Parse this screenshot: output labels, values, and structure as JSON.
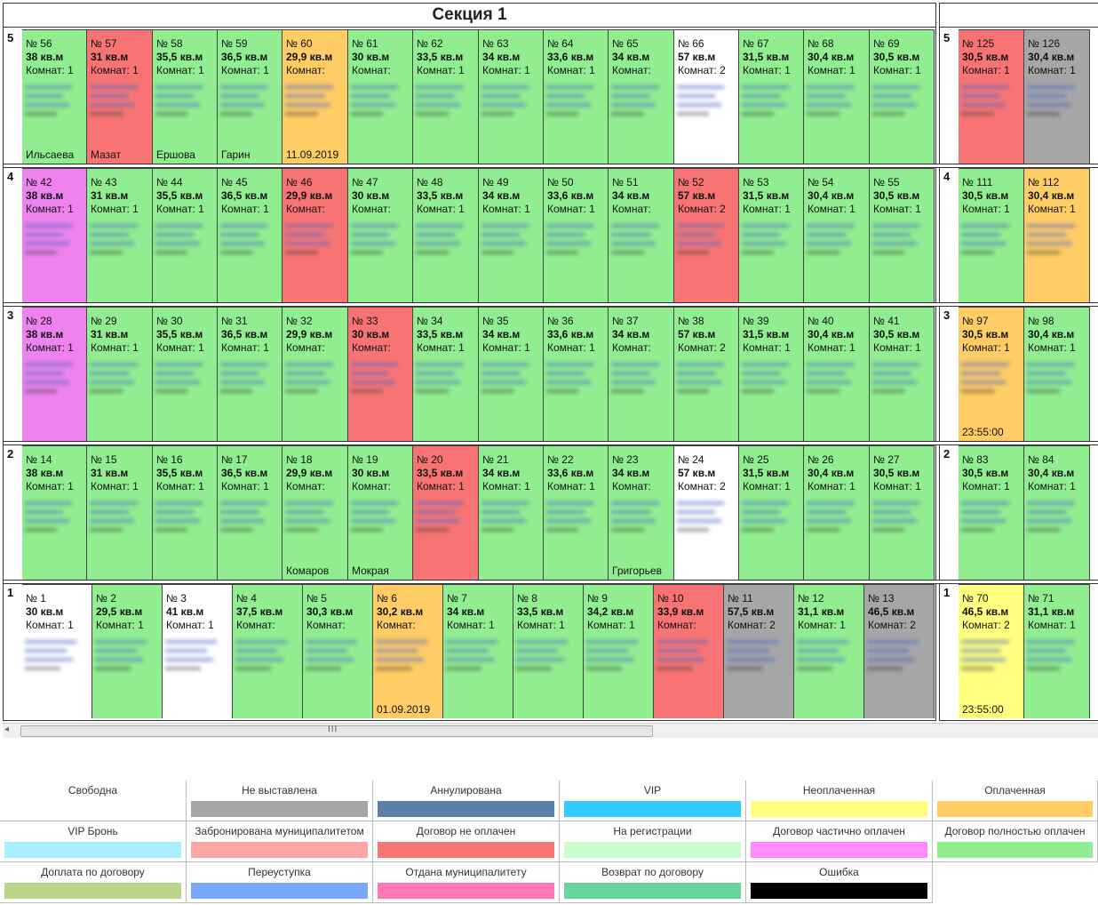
{
  "section1": {
    "title": "Секция 1"
  },
  "floors": [
    {
      "label": "5",
      "cells": [
        {
          "n": "№ 56",
          "a": "38 кв.м",
          "r": "Комнат: 1",
          "c": "#90ee90",
          "x": "Ильсаева"
        },
        {
          "n": "№ 57",
          "a": "31 кв.м",
          "r": "Комнат: 1",
          "c": "#f87474",
          "x": "Мазат"
        },
        {
          "n": "№ 58",
          "a": "35,5 кв.м",
          "r": "Комнат: 1",
          "c": "#90ee90",
          "x": "Ершова"
        },
        {
          "n": "№ 59",
          "a": "36,5 кв.м",
          "r": "Комнат: 1",
          "c": "#90ee90",
          "x": "Гарин"
        },
        {
          "n": "№ 60",
          "a": "29,9 кв.м",
          "r": "Комнат:",
          "c": "#ffcc66",
          "x": "11.09.2019"
        },
        {
          "n": "№ 61",
          "a": "30 кв.м",
          "r": "Комнат:",
          "c": "#90ee90",
          "x": ""
        },
        {
          "n": "№ 62",
          "a": "33,5 кв.м",
          "r": "Комнат: 1",
          "c": "#90ee90",
          "x": ""
        },
        {
          "n": "№ 63",
          "a": "34 кв.м",
          "r": "Комнат: 1",
          "c": "#90ee90",
          "x": ""
        },
        {
          "n": "№ 64",
          "a": "33,6 кв.м",
          "r": "Комнат: 1",
          "c": "#90ee90",
          "x": ""
        },
        {
          "n": "№ 65",
          "a": "34 кв.м",
          "r": "Комнат:",
          "c": "#90ee90",
          "x": ""
        },
        {
          "n": "№ 66",
          "a": "57 кв.м",
          "r": "Комнат: 2",
          "c": "#ffffff",
          "x": ""
        },
        {
          "n": "№ 67",
          "a": "31,5 кв.м",
          "r": "Комнат: 1",
          "c": "#90ee90",
          "x": ""
        },
        {
          "n": "№ 68",
          "a": "30,4 кв.м",
          "r": "Комнат: 1",
          "c": "#90ee90",
          "x": ""
        },
        {
          "n": "№ 69",
          "a": "30,5 кв.м",
          "r": "Комнат: 1",
          "c": "#90ee90",
          "x": ""
        }
      ],
      "right": [
        {
          "n": "№ 125",
          "a": "30,5 кв.м",
          "r": "Комнат: 1",
          "c": "#f87474",
          "x": ""
        },
        {
          "n": "№ 126",
          "a": "30,4 кв.м",
          "r": "Комнат: 1",
          "c": "#a6a6a6",
          "x": ""
        }
      ]
    },
    {
      "label": "4",
      "cells": [
        {
          "n": "№ 42",
          "a": "38 кв.м",
          "r": "Комнат: 1",
          "c": "#ee82ee",
          "x": ""
        },
        {
          "n": "№ 43",
          "a": "31 кв.м",
          "r": "Комнат: 1",
          "c": "#90ee90",
          "x": ""
        },
        {
          "n": "№ 44",
          "a": "35,5 кв.м",
          "r": "Комнат: 1",
          "c": "#90ee90",
          "x": ""
        },
        {
          "n": "№ 45",
          "a": "36,5 кв.м",
          "r": "Комнат: 1",
          "c": "#90ee90",
          "x": ""
        },
        {
          "n": "№ 46",
          "a": "29,9 кв.м",
          "r": "Комнат:",
          "c": "#f87474",
          "x": ""
        },
        {
          "n": "№ 47",
          "a": "30 кв.м",
          "r": "Комнат:",
          "c": "#90ee90",
          "x": ""
        },
        {
          "n": "№ 48",
          "a": "33,5 кв.м",
          "r": "Комнат: 1",
          "c": "#90ee90",
          "x": ""
        },
        {
          "n": "№ 49",
          "a": "34 кв.м",
          "r": "Комнат: 1",
          "c": "#90ee90",
          "x": ""
        },
        {
          "n": "№ 50",
          "a": "33,6 кв.м",
          "r": "Комнат: 1",
          "c": "#90ee90",
          "x": ""
        },
        {
          "n": "№ 51",
          "a": "34 кв.м",
          "r": "Комнат:",
          "c": "#90ee90",
          "x": ""
        },
        {
          "n": "№ 52",
          "a": "57 кв.м",
          "r": "Комнат: 2",
          "c": "#f87474",
          "x": ""
        },
        {
          "n": "№ 53",
          "a": "31,5 кв.м",
          "r": "Комнат: 1",
          "c": "#90ee90",
          "x": ""
        },
        {
          "n": "№ 54",
          "a": "30,4 кв.м",
          "r": "Комнат: 1",
          "c": "#90ee90",
          "x": ""
        },
        {
          "n": "№ 55",
          "a": "30,5 кв.м",
          "r": "Комнат: 1",
          "c": "#90ee90",
          "x": ""
        }
      ],
      "right": [
        {
          "n": "№ 111",
          "a": "30,5 кв.м",
          "r": "Комнат: 1",
          "c": "#90ee90",
          "x": ""
        },
        {
          "n": "№ 112",
          "a": "30,4 кв.м",
          "r": "Комнат: 1",
          "c": "#ffcc66",
          "x": ""
        }
      ]
    },
    {
      "label": "3",
      "cells": [
        {
          "n": "№ 28",
          "a": "38 кв.м",
          "r": "Комнат: 1",
          "c": "#ee82ee",
          "x": ""
        },
        {
          "n": "№ 29",
          "a": "31 кв.м",
          "r": "Комнат: 1",
          "c": "#90ee90",
          "x": ""
        },
        {
          "n": "№ 30",
          "a": "35,5 кв.м",
          "r": "Комнат: 1",
          "c": "#90ee90",
          "x": ""
        },
        {
          "n": "№ 31",
          "a": "36,5 кв.м",
          "r": "Комнат: 1",
          "c": "#90ee90",
          "x": ""
        },
        {
          "n": "№ 32",
          "a": "29,9 кв.м",
          "r": "Комнат:",
          "c": "#90ee90",
          "x": ""
        },
        {
          "n": "№ 33",
          "a": "30 кв.м",
          "r": "Комнат:",
          "c": "#f87474",
          "x": ""
        },
        {
          "n": "№ 34",
          "a": "33,5 кв.м",
          "r": "Комнат: 1",
          "c": "#90ee90",
          "x": ""
        },
        {
          "n": "№ 35",
          "a": "34 кв.м",
          "r": "Комнат: 1",
          "c": "#90ee90",
          "x": ""
        },
        {
          "n": "№ 36",
          "a": "33,6 кв.м",
          "r": "Комнат: 1",
          "c": "#90ee90",
          "x": ""
        },
        {
          "n": "№ 37",
          "a": "34 кв.м",
          "r": "Комнат:",
          "c": "#90ee90",
          "x": ""
        },
        {
          "n": "№ 38",
          "a": "57 кв.м",
          "r": "Комнат: 2",
          "c": "#90ee90",
          "x": ""
        },
        {
          "n": "№ 39",
          "a": "31,5 кв.м",
          "r": "Комнат: 1",
          "c": "#90ee90",
          "x": ""
        },
        {
          "n": "№ 40",
          "a": "30,4 кв.м",
          "r": "Комнат: 1",
          "c": "#90ee90",
          "x": ""
        },
        {
          "n": "№ 41",
          "a": "30,5 кв.м",
          "r": "Комнат: 1",
          "c": "#90ee90",
          "x": ""
        }
      ],
      "right": [
        {
          "n": "№ 97",
          "a": "30,5 кв.м",
          "r": "Комнат: 1",
          "c": "#ffcc66",
          "x": "23:55:00"
        },
        {
          "n": "№ 98",
          "a": "30,4 кв.м",
          "r": "Комнат: 1",
          "c": "#90ee90",
          "x": ""
        }
      ]
    },
    {
      "label": "2",
      "cells": [
        {
          "n": "№ 14",
          "a": "38 кв.м",
          "r": "Комнат: 1",
          "c": "#90ee90",
          "x": ""
        },
        {
          "n": "№ 15",
          "a": "31 кв.м",
          "r": "Комнат: 1",
          "c": "#90ee90",
          "x": ""
        },
        {
          "n": "№ 16",
          "a": "35,5 кв.м",
          "r": "Комнат: 1",
          "c": "#90ee90",
          "x": ""
        },
        {
          "n": "№ 17",
          "a": "36,5 кв.м",
          "r": "Комнат: 1",
          "c": "#90ee90",
          "x": ""
        },
        {
          "n": "№ 18",
          "a": "29,9 кв.м",
          "r": "Комнат:",
          "c": "#90ee90",
          "x": "Комаров"
        },
        {
          "n": "№ 19",
          "a": "30 кв.м",
          "r": "Комнат:",
          "c": "#90ee90",
          "x": "Мокрая"
        },
        {
          "n": "№ 20",
          "a": "33,5 кв.м",
          "r": "Комнат: 1",
          "c": "#f87474",
          "x": ""
        },
        {
          "n": "№ 21",
          "a": "34 кв.м",
          "r": "Комнат: 1",
          "c": "#90ee90",
          "x": ""
        },
        {
          "n": "№ 22",
          "a": "33,6 кв.м",
          "r": "Комнат: 1",
          "c": "#90ee90",
          "x": ""
        },
        {
          "n": "№ 23",
          "a": "34 кв.м",
          "r": "Комнат:",
          "c": "#90ee90",
          "x": "Григорьев"
        },
        {
          "n": "№ 24",
          "a": "57 кв.м",
          "r": "Комнат: 2",
          "c": "#ffffff",
          "x": ""
        },
        {
          "n": "№ 25",
          "a": "31,5 кв.м",
          "r": "Комнат: 1",
          "c": "#90ee90",
          "x": ""
        },
        {
          "n": "№ 26",
          "a": "30,4 кв.м",
          "r": "Комнат: 1",
          "c": "#90ee90",
          "x": ""
        },
        {
          "n": "№ 27",
          "a": "30,5 кв.м",
          "r": "Комнат: 1",
          "c": "#90ee90",
          "x": ""
        }
      ],
      "right": [
        {
          "n": "№ 83",
          "a": "30,5 кв.м",
          "r": "Комнат: 1",
          "c": "#90ee90",
          "x": ""
        },
        {
          "n": "№ 84",
          "a": "30,4 кв.м",
          "r": "Комнат: 1",
          "c": "#90ee90",
          "x": ""
        }
      ]
    },
    {
      "label": "1",
      "cells": [
        {
          "n": "№ 1",
          "a": "30 кв.м",
          "r": "Комнат: 1",
          "c": "#ffffff",
          "x": ""
        },
        {
          "n": "№ 2",
          "a": "29,5 кв.м",
          "r": "Комнат: 1",
          "c": "#90ee90",
          "x": ""
        },
        {
          "n": "№ 3",
          "a": "41 кв.м",
          "r": "Комнат: 1",
          "c": "#ffffff",
          "x": ""
        },
        {
          "n": "№ 4",
          "a": "37,5 кв.м",
          "r": "Комнат:",
          "c": "#90ee90",
          "x": ""
        },
        {
          "n": "№ 5",
          "a": "30,3 кв.м",
          "r": "Комнат:",
          "c": "#90ee90",
          "x": ""
        },
        {
          "n": "№ 6",
          "a": "30,2 кв.м",
          "r": "Комнат:",
          "c": "#ffcc66",
          "x": "01.09.2019"
        },
        {
          "n": "№ 7",
          "a": "34 кв.м",
          "r": "Комнат: 1",
          "c": "#90ee90",
          "x": ""
        },
        {
          "n": "№ 8",
          "a": "33,5 кв.м",
          "r": "Комнат: 1",
          "c": "#90ee90",
          "x": ""
        },
        {
          "n": "№ 9",
          "a": "34,2 кв.м",
          "r": "Комнат: 1",
          "c": "#90ee90",
          "x": ""
        },
        {
          "n": "№ 10",
          "a": "33,9 кв.м",
          "r": "Комнат:",
          "c": "#f87474",
          "x": ""
        },
        {
          "n": "№ 11",
          "a": "57,5 кв.м",
          "r": "Комнат: 2",
          "c": "#a6a6a6",
          "x": ""
        },
        {
          "n": "№ 12",
          "a": "31,1 кв.м",
          "r": "Комнат: 1",
          "c": "#90ee90",
          "x": ""
        },
        {
          "n": "№ 13",
          "a": "46,5 кв.м",
          "r": "Комнат: 2",
          "c": "#a6a6a6",
          "x": ""
        }
      ],
      "right": [
        {
          "n": "№ 70",
          "a": "46,5 кв.м",
          "r": "Комнат: 2",
          "c": "#ffff80",
          "x": "23:55:00"
        },
        {
          "n": "№ 71",
          "a": "31,1 кв.м",
          "r": "Комнат: 1",
          "c": "#90ee90",
          "x": ""
        }
      ]
    }
  ],
  "scroll": {
    "grip": "III",
    "arrow": "◂"
  },
  "legend": [
    {
      "label": "Свободна",
      "color": "#ffffff"
    },
    {
      "label": "Не выставлена",
      "color": "#a6a6a6"
    },
    {
      "label": "Аннулирована",
      "color": "#5b7fab"
    },
    {
      "label": "VIP",
      "color": "#33ccff"
    },
    {
      "label": "Неоплаченная",
      "color": "#ffff80"
    },
    {
      "label": "Оплаченная",
      "color": "#ffcc66"
    },
    {
      "label": "VIP Бронь",
      "color": "#a8f0ff"
    },
    {
      "label": "Забронирована муниципалитетом",
      "color": "#ffa6a6"
    },
    {
      "label": "Договор не оплачен",
      "color": "#f87474"
    },
    {
      "label": "На регистрации",
      "color": "#ccffcc"
    },
    {
      "label": "Договор частично оплачен",
      "color": "#ff8cff"
    },
    {
      "label": "Договор полностью оплачен",
      "color": "#90ee90"
    },
    {
      "label": "Доплата по договору",
      "color": "#b8d68a"
    },
    {
      "label": "Переуступка",
      "color": "#7aa8ff"
    },
    {
      "label": "Отдана муниципалитету",
      "color": "#ff78b4"
    },
    {
      "label": "Возврат по договору",
      "color": "#66d699"
    },
    {
      "label": "Ошибка",
      "color": "#000000"
    }
  ]
}
